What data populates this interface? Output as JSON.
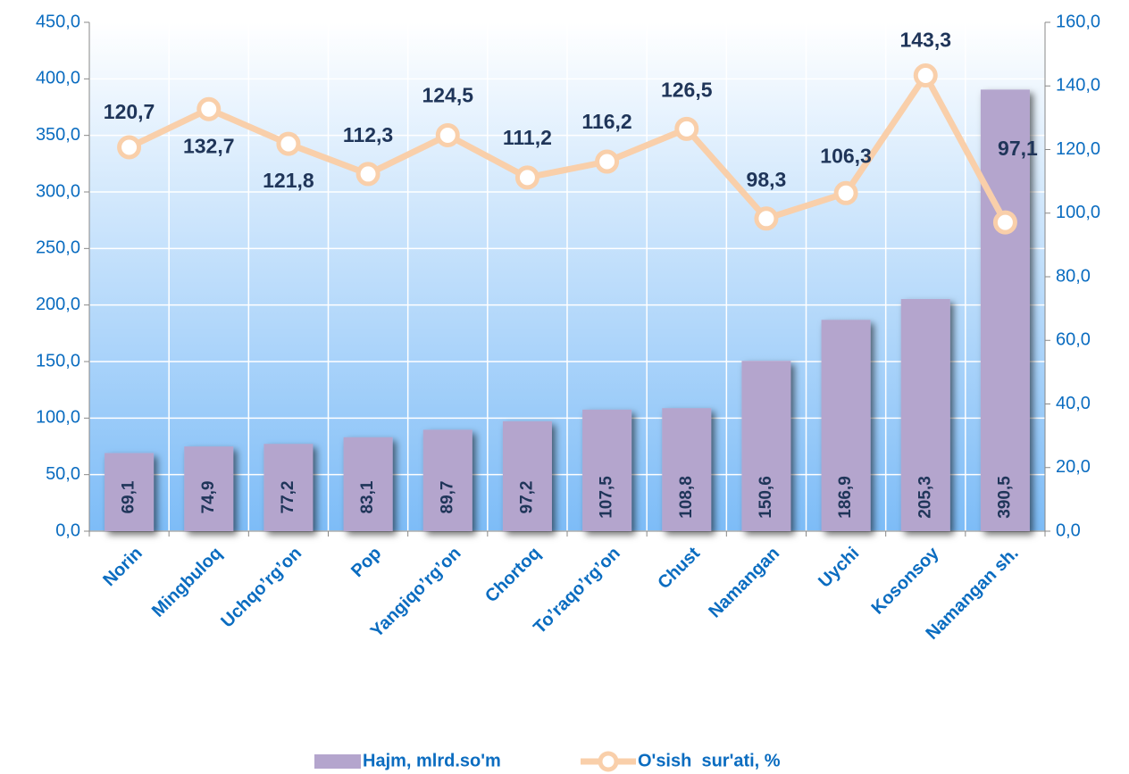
{
  "chart_data": {
    "type": "bar+line",
    "categories": [
      "Norin",
      "Mingbuloq",
      "Uchqo’rg’on",
      "Pop",
      "Yangiqo’rg’on",
      "Chortoq",
      "To’raqo’rg’on",
      "Chust",
      "Namangan",
      "Uychi",
      "Kosonsoy",
      "Namangan sh."
    ],
    "series": [
      {
        "name": "Hajm, mlrd.so'm",
        "type": "bar",
        "color": "#b4a5cd",
        "values": [
          69.1,
          74.9,
          77.2,
          83.1,
          89.7,
          97.2,
          107.5,
          108.8,
          150.6,
          186.9,
          205.3,
          390.5
        ],
        "value_labels": [
          "69,1",
          "74,9",
          "77,2",
          "83,1",
          "89,7",
          "97,2",
          "107,5",
          "108,8",
          "150,6",
          "186,9",
          "205,3",
          "390,5"
        ]
      },
      {
        "name": "O'sish  sur'ati, %",
        "type": "line",
        "axis": "y2",
        "color": "#f9cfaa",
        "values": [
          120.7,
          132.7,
          121.8,
          112.3,
          124.5,
          111.2,
          116.2,
          126.5,
          98.3,
          106.3,
          143.3,
          97.1
        ],
        "value_labels": [
          "120,7",
          "132,7",
          "121,8",
          "112,3",
          "124,5",
          "111,2",
          "116,2",
          "126,5",
          "98,3",
          "106,3",
          "143,3",
          "97,1"
        ]
      }
    ],
    "ylim": [
      0,
      450
    ],
    "yticks": [
      {
        "value": 0,
        "label": "0,0"
      },
      {
        "value": 50,
        "label": "50,0"
      },
      {
        "value": 100,
        "label": "100,0"
      },
      {
        "value": 150,
        "label": "150,0"
      },
      {
        "value": 200,
        "label": "200,0"
      },
      {
        "value": 250,
        "label": "250,0"
      },
      {
        "value": 300,
        "label": "300,0"
      },
      {
        "value": 350,
        "label": "350,0"
      },
      {
        "value": 400,
        "label": "400,0"
      },
      {
        "value": 450,
        "label": "450,0"
      }
    ],
    "y2lim": [
      0,
      160
    ],
    "y2ticks": [
      {
        "value": 0,
        "label": "0,0"
      },
      {
        "value": 20,
        "label": "20,0"
      },
      {
        "value": 40,
        "label": "40,0"
      },
      {
        "value": 60,
        "label": "60,0"
      },
      {
        "value": 80,
        "label": "80,0"
      },
      {
        "value": 100,
        "label": "100,0"
      },
      {
        "value": 120,
        "label": "120,0"
      },
      {
        "value": 140,
        "label": "140,0"
      },
      {
        "value": 160,
        "label": "160,0"
      }
    ],
    "grid": true,
    "legend": "bottom"
  }
}
